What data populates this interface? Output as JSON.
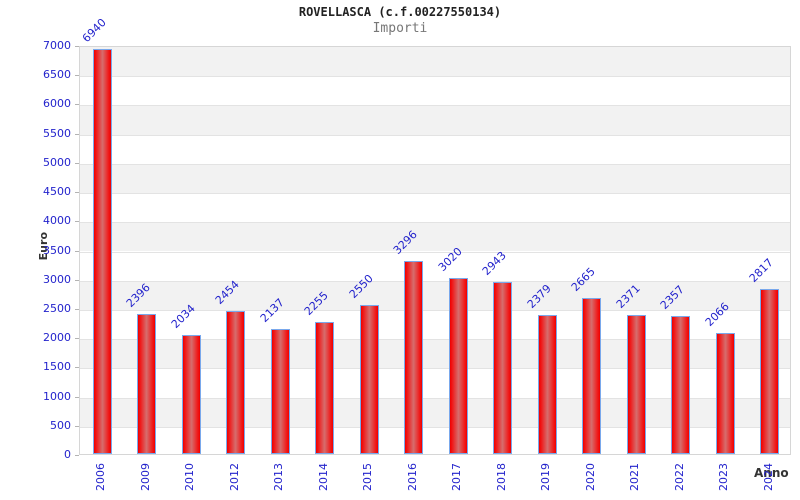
{
  "chart_data": {
    "type": "bar",
    "title": "ROVELLASCA (c.f.00227550134)",
    "subtitle": "Importi",
    "xlabel": "Anno",
    "ylabel": "Euro",
    "categories": [
      "2006",
      "2009",
      "2010",
      "2012",
      "2013",
      "2014",
      "2015",
      "2016",
      "2017",
      "2018",
      "2019",
      "2020",
      "2021",
      "2022",
      "2023",
      "2024"
    ],
    "values": [
      6940,
      2396,
      2034,
      2454,
      2137,
      2255,
      2550,
      3296,
      3020,
      2943,
      2379,
      2665,
      2371,
      2357,
      2066,
      2817
    ],
    "ylim": [
      0,
      7000
    ],
    "ytick_step": 500,
    "grid": "horizontal gridlines every 500 with alternating gray/white bands",
    "legend": "none",
    "bar_value_labels": "rotated 45deg above each bar",
    "x_tick_labels": "rotated 90deg vertical"
  },
  "colors": {
    "label_blue": "#2323cc",
    "bar_red": "#ee0000",
    "bar_border": "#79a8ec",
    "band_gray": "#f2f2f2",
    "title_color": "#222222",
    "subtitle_color": "#777777"
  }
}
